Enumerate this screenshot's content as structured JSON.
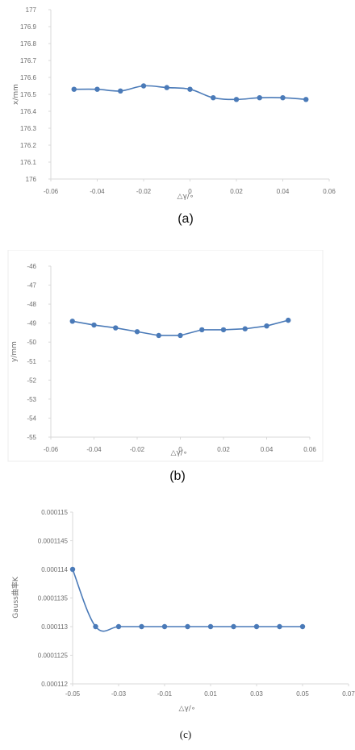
{
  "chart_data": [
    {
      "type": "line",
      "caption": "(a)",
      "xlabel": "△γ/∘",
      "ylabel": "x/mm",
      "xlim": [
        -0.06,
        0.06
      ],
      "ylim": [
        176,
        177
      ],
      "grid": false,
      "x_ticks": [
        "-0.06",
        "-0.04",
        "-0.02",
        "0",
        "0.02",
        "0.04",
        "0.06"
      ],
      "y_ticks": [
        "176",
        "176.1",
        "176.2",
        "176.3",
        "176.4",
        "176.5",
        "176.6",
        "176.7",
        "176.8",
        "176.9",
        "177"
      ],
      "series": [
        {
          "x": [
            -0.05,
            -0.04,
            -0.03,
            -0.02,
            -0.01,
            0,
            0.01,
            0.02,
            0.03,
            0.04,
            0.05
          ],
          "y": [
            176.53,
            176.53,
            176.52,
            176.55,
            176.54,
            176.53,
            176.48,
            176.47,
            176.48,
            176.48,
            176.47
          ]
        }
      ]
    },
    {
      "type": "line",
      "caption": "(b)",
      "xlabel": "△γ/∘",
      "ylabel": "y/mm",
      "xlim": [
        -0.06,
        0.06
      ],
      "ylim": [
        -55,
        -46
      ],
      "grid": false,
      "x_ticks": [
        "-0.06",
        "-0.04",
        "-0.02",
        "0",
        "0.02",
        "0.04",
        "0.06"
      ],
      "y_ticks": [
        "-46",
        "-47",
        "-48",
        "-49",
        "-50",
        "-51",
        "-52",
        "-53",
        "-54",
        "-55"
      ],
      "series": [
        {
          "x": [
            -0.05,
            -0.04,
            -0.03,
            -0.02,
            -0.01,
            0,
            0.01,
            0.02,
            0.03,
            0.04,
            0.05
          ],
          "y": [
            -48.9,
            -49.1,
            -49.25,
            -49.45,
            -49.65,
            -49.65,
            -49.35,
            -49.35,
            -49.3,
            -49.15,
            -48.85
          ]
        }
      ]
    },
    {
      "type": "line",
      "caption": "(c)",
      "xlabel": "△γ/∘",
      "ylabel": "Gauss曲率K",
      "xlim": [
        -0.05,
        0.07
      ],
      "ylim": [
        0.000112,
        0.000115
      ],
      "grid": false,
      "x_ticks": [
        "-0.05",
        "-0.03",
        "-0.01",
        "0.01",
        "0.03",
        "0.05",
        "0.07"
      ],
      "y_ticks": [
        "0.000115",
        "0.0001145",
        "0.000114",
        "0.0001135",
        "0.000113",
        "0.0001125",
        "0.000112"
      ],
      "series": [
        {
          "x": [
            -0.05,
            -0.04,
            -0.03,
            -0.02,
            -0.01,
            0,
            0.01,
            0.02,
            0.03,
            0.04,
            0.05
          ],
          "y": [
            0.000114,
            0.000113,
            0.000113,
            0.000113,
            0.000113,
            0.000113,
            0.000113,
            0.000113,
            0.000113,
            0.000113,
            0.000113
          ]
        }
      ]
    }
  ],
  "style": {
    "line_color": "#4a7ab8",
    "axis_color": "#d9d9d9",
    "tick_color": "#6d6d6d"
  }
}
